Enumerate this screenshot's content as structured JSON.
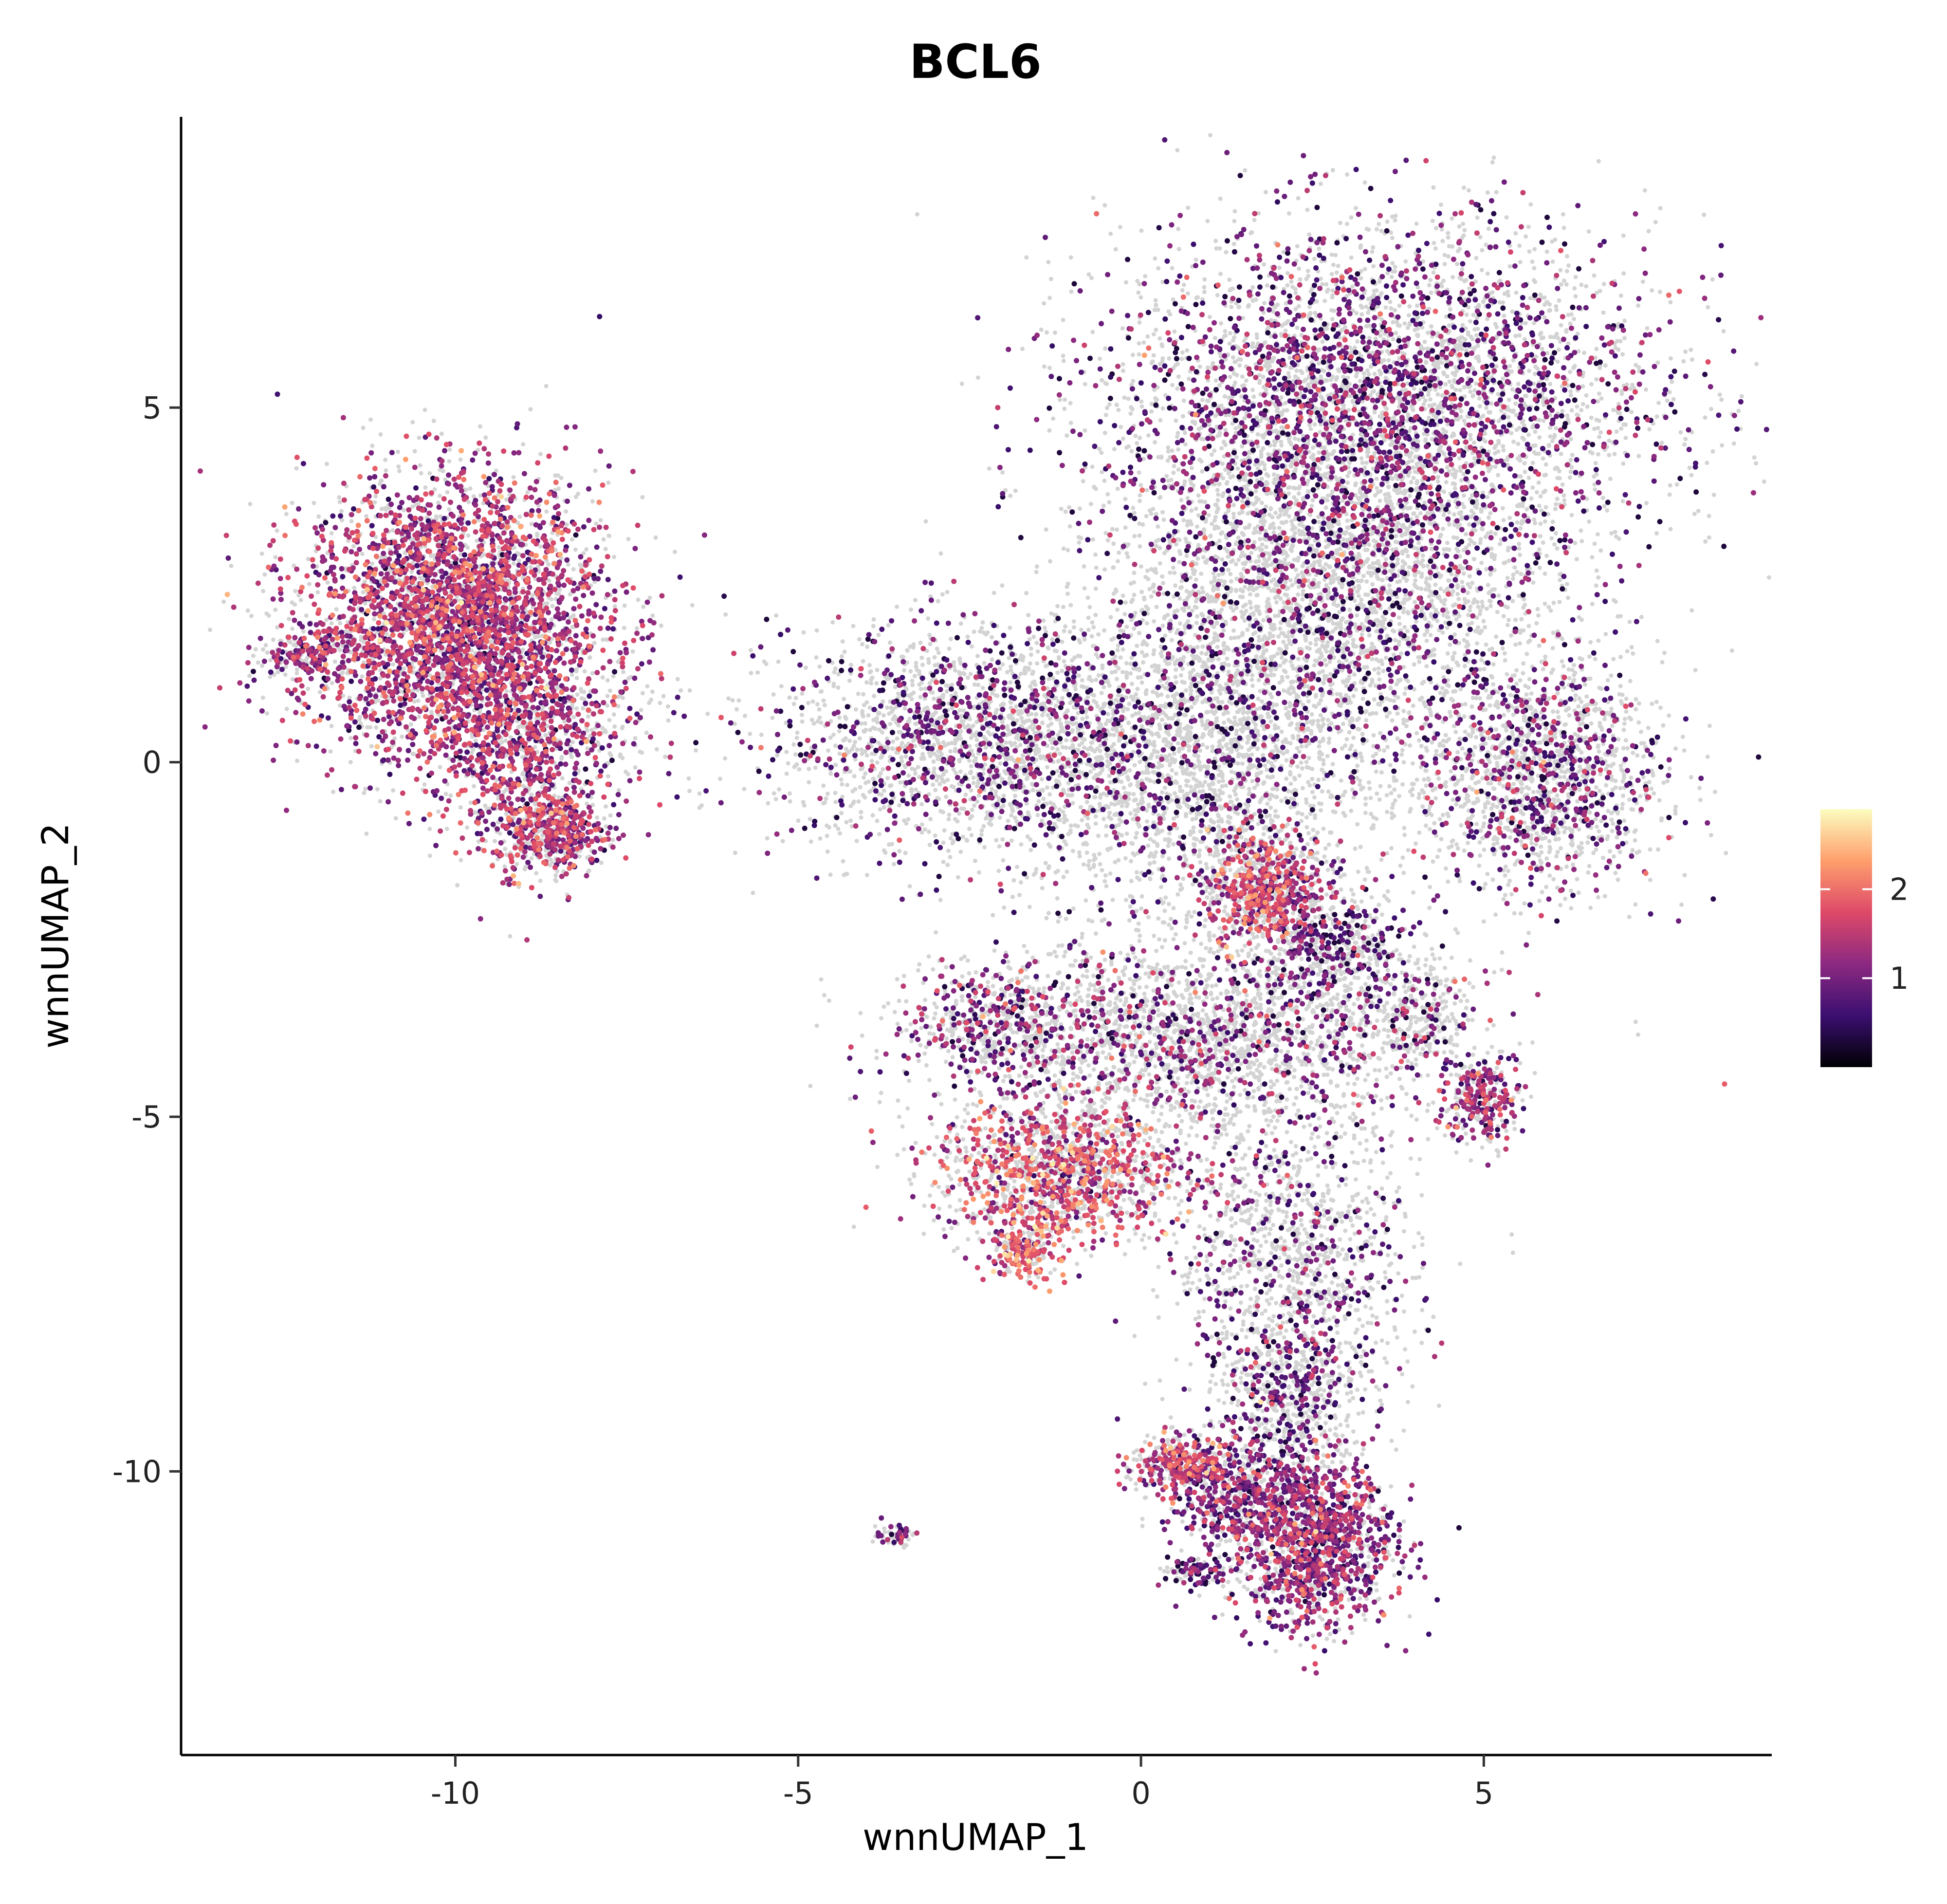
{
  "chart_data": {
    "type": "scatter",
    "title": "BCL6",
    "xlabel": "wnnUMAP_1",
    "ylabel": "wnnUMAP_2",
    "xlim": [
      -14,
      9.2
    ],
    "ylim": [
      -14,
      9.1
    ],
    "x_ticks": [
      -10,
      -5,
      0,
      5
    ],
    "y_ticks": [
      5,
      0,
      -5,
      -10
    ],
    "x_tick_labels": [
      "-10",
      "-5",
      "0",
      "5"
    ],
    "y_tick_labels": [
      "5",
      "0",
      "-5",
      "-10"
    ],
    "grid": false,
    "legend": {
      "placement": "right",
      "type": "colorbar",
      "labels": [
        "2",
        "1"
      ],
      "values": [
        2,
        1
      ],
      "range": [
        0,
        2.9
      ]
    },
    "colors": {
      "background_cells": "#d3d3d3",
      "scale_low": "#000004",
      "scale_mid_low": "#3b0f70",
      "scale_mid": "#8c2981",
      "scale_mid_high": "#de4968",
      "scale_high_mid": "#fe9f6d",
      "scale_high": "#fcfdbf"
    },
    "point_clusters": [
      {
        "cx": -10.0,
        "cy": 2.0,
        "sx": 1.1,
        "sy": 1.0,
        "gray": 1800,
        "expr": 2600,
        "mean_expr": 1.3
      },
      {
        "cx": -9.0,
        "cy": 0.2,
        "sx": 0.6,
        "sy": 0.8,
        "gray": 300,
        "expr": 500,
        "mean_expr": 1.2
      },
      {
        "cx": -8.6,
        "cy": -1.0,
        "sx": 0.4,
        "sy": 0.3,
        "gray": 150,
        "expr": 300,
        "mean_expr": 1.4
      },
      {
        "cx": -12.2,
        "cy": 1.5,
        "sx": 0.35,
        "sy": 0.2,
        "gray": 80,
        "expr": 120,
        "mean_expr": 1.2
      },
      {
        "cx": -7.5,
        "cy": 0.5,
        "sx": 0.5,
        "sy": 0.4,
        "gray": 60,
        "expr": 20,
        "mean_expr": 1.0
      },
      {
        "cx": 3.5,
        "cy": 5.2,
        "sx": 2.0,
        "sy": 1.2,
        "gray": 3500,
        "expr": 1700,
        "mean_expr": 0.9
      },
      {
        "cx": 2.8,
        "cy": 2.6,
        "sx": 1.6,
        "sy": 1.3,
        "gray": 3000,
        "expr": 800,
        "mean_expr": 0.8
      },
      {
        "cx": 5.8,
        "cy": -0.2,
        "sx": 0.9,
        "sy": 0.8,
        "gray": 1100,
        "expr": 500,
        "mean_expr": 0.9
      },
      {
        "cx": -2.3,
        "cy": 0.3,
        "sx": 1.5,
        "sy": 0.8,
        "gray": 1600,
        "expr": 700,
        "mean_expr": 0.8
      },
      {
        "cx": 1.0,
        "cy": 0.0,
        "sx": 1.2,
        "sy": 1.2,
        "gray": 1800,
        "expr": 300,
        "mean_expr": 0.7
      },
      {
        "cx": 1.8,
        "cy": -1.8,
        "sx": 0.4,
        "sy": 0.4,
        "gray": 250,
        "expr": 400,
        "mean_expr": 1.5
      },
      {
        "cx": 2.8,
        "cy": -2.6,
        "sx": 0.6,
        "sy": 0.4,
        "gray": 300,
        "expr": 200,
        "mean_expr": 0.6
      },
      {
        "cx": 0.8,
        "cy": -3.9,
        "sx": 1.8,
        "sy": 0.7,
        "gray": 2000,
        "expr": 600,
        "mean_expr": 1.0
      },
      {
        "cx": -1.2,
        "cy": -5.8,
        "sx": 0.9,
        "sy": 0.5,
        "gray": 700,
        "expr": 700,
        "mean_expr": 1.6
      },
      {
        "cx": -1.7,
        "cy": -6.9,
        "sx": 0.25,
        "sy": 0.2,
        "gray": 80,
        "expr": 120,
        "mean_expr": 1.8
      },
      {
        "cx": -2.2,
        "cy": -3.7,
        "sx": 0.6,
        "sy": 0.4,
        "gray": 250,
        "expr": 200,
        "mean_expr": 1.0
      },
      {
        "cx": 5.0,
        "cy": -4.8,
        "sx": 0.3,
        "sy": 0.3,
        "gray": 100,
        "expr": 180,
        "mean_expr": 1.2
      },
      {
        "cx": 2.2,
        "cy": -7.0,
        "sx": 0.9,
        "sy": 1.0,
        "gray": 900,
        "expr": 300,
        "mean_expr": 0.8
      },
      {
        "cx": 2.2,
        "cy": -9.0,
        "sx": 0.5,
        "sy": 0.6,
        "gray": 400,
        "expr": 200,
        "mean_expr": 0.8
      },
      {
        "cx": 2.5,
        "cy": -11.0,
        "sx": 0.6,
        "sy": 0.6,
        "gray": 500,
        "expr": 900,
        "mean_expr": 1.1
      },
      {
        "cx": 0.6,
        "cy": -9.9,
        "sx": 0.4,
        "sy": 0.2,
        "gray": 150,
        "expr": 200,
        "mean_expr": 1.4
      },
      {
        "cx": 1.4,
        "cy": -10.3,
        "sx": 0.5,
        "sy": 0.4,
        "gray": 200,
        "expr": 300,
        "mean_expr": 1.0
      },
      {
        "cx": 0.8,
        "cy": -11.4,
        "sx": 0.25,
        "sy": 0.12,
        "gray": 40,
        "expr": 60,
        "mean_expr": 0.8
      },
      {
        "cx": -3.6,
        "cy": -10.9,
        "sx": 0.15,
        "sy": 0.08,
        "gray": 30,
        "expr": 25,
        "mean_expr": 0.8
      },
      {
        "cx": 4.0,
        "cy": -3.6,
        "sx": 0.4,
        "sy": 0.4,
        "gray": 200,
        "expr": 60,
        "mean_expr": 0.7
      }
    ]
  }
}
